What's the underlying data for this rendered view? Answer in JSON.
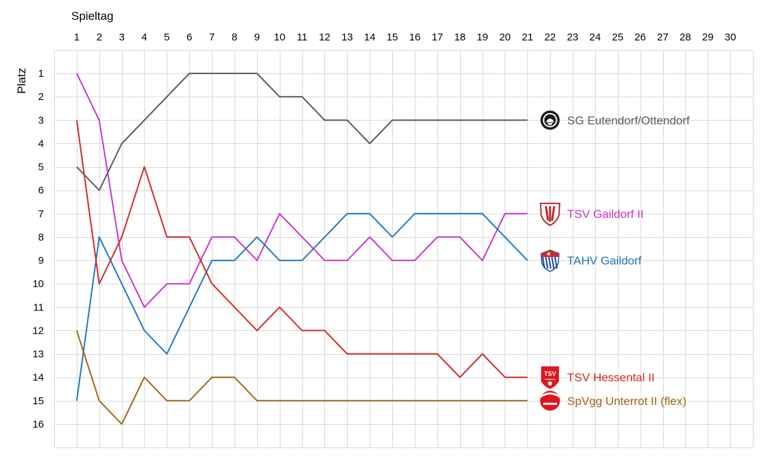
{
  "chart_data": {
    "type": "line",
    "xlabel": "Spieltag",
    "ylabel": "Platz",
    "x_ticks": [
      1,
      2,
      3,
      4,
      5,
      6,
      7,
      8,
      9,
      10,
      11,
      12,
      13,
      14,
      15,
      16,
      17,
      18,
      19,
      20,
      21,
      22,
      23,
      24,
      25,
      26,
      27,
      28,
      29,
      30
    ],
    "y_ticks": [
      1,
      2,
      3,
      4,
      5,
      6,
      7,
      8,
      9,
      10,
      11,
      12,
      13,
      14,
      15,
      16
    ],
    "xlim": [
      0,
      31
    ],
    "ylim": [
      0,
      17
    ],
    "y_inverted": true,
    "grid": true,
    "series": [
      {
        "name": "SG Eutendorf/Ottendorf",
        "color": "#595959",
        "logo": "sg-eutendorf-crest-icon",
        "x": [
          1,
          2,
          3,
          4,
          5,
          6,
          7,
          8,
          9,
          10,
          11,
          12,
          13,
          14,
          15,
          16,
          17,
          18,
          19,
          20,
          21
        ],
        "values": [
          5,
          6,
          4,
          3,
          2,
          1,
          1,
          1,
          1,
          2,
          2,
          3,
          3,
          4,
          3,
          3,
          3,
          3,
          3,
          3,
          3
        ]
      },
      {
        "name": "TSV Gaildorf II",
        "color": "#cc33cc",
        "logo": "tsv-gaildorf-crest-icon",
        "x": [
          1,
          2,
          3,
          4,
          5,
          6,
          7,
          8,
          9,
          10,
          11,
          12,
          13,
          14,
          15,
          16,
          17,
          18,
          19,
          20,
          21
        ],
        "values": [
          1,
          3,
          9,
          11,
          10,
          10,
          8,
          8,
          9,
          7,
          8,
          9,
          9,
          8,
          9,
          9,
          8,
          8,
          9,
          7,
          7
        ]
      },
      {
        "name": "TAHV Gaildorf",
        "color": "#1f77c0",
        "logo": "tahv-gaildorf-crest-icon",
        "x": [
          1,
          2,
          3,
          4,
          5,
          6,
          7,
          8,
          9,
          10,
          11,
          12,
          13,
          14,
          15,
          16,
          17,
          18,
          19,
          20,
          21
        ],
        "values": [
          15,
          8,
          10,
          12,
          13,
          11,
          9,
          9,
          8,
          9,
          9,
          8,
          7,
          7,
          8,
          7,
          7,
          7,
          7,
          8,
          9
        ]
      },
      {
        "name": "TSV Hessental II",
        "color": "#d62728",
        "logo": "tsv-hessental-crest-icon",
        "logo_text": "TSV",
        "x": [
          1,
          2,
          3,
          4,
          5,
          6,
          7,
          8,
          9,
          10,
          11,
          12,
          13,
          14,
          15,
          16,
          17,
          18,
          19,
          20,
          21
        ],
        "values": [
          3,
          10,
          8,
          5,
          8,
          8,
          10,
          11,
          12,
          11,
          12,
          12,
          13,
          13,
          13,
          13,
          13,
          14,
          13,
          14,
          14
        ]
      },
      {
        "name": "SpVgg Unterrot II (flex)",
        "color": "#a0661a",
        "logo": "spvgg-unterrot-crest-icon",
        "x": [
          1,
          2,
          3,
          4,
          5,
          6,
          7,
          8,
          9,
          10,
          11,
          12,
          13,
          14,
          15,
          16,
          17,
          18,
          19,
          20,
          21
        ],
        "values": [
          12,
          15,
          16,
          14,
          15,
          15,
          14,
          14,
          15,
          15,
          15,
          15,
          15,
          15,
          15,
          15,
          15,
          15,
          15,
          15,
          15
        ]
      }
    ]
  }
}
